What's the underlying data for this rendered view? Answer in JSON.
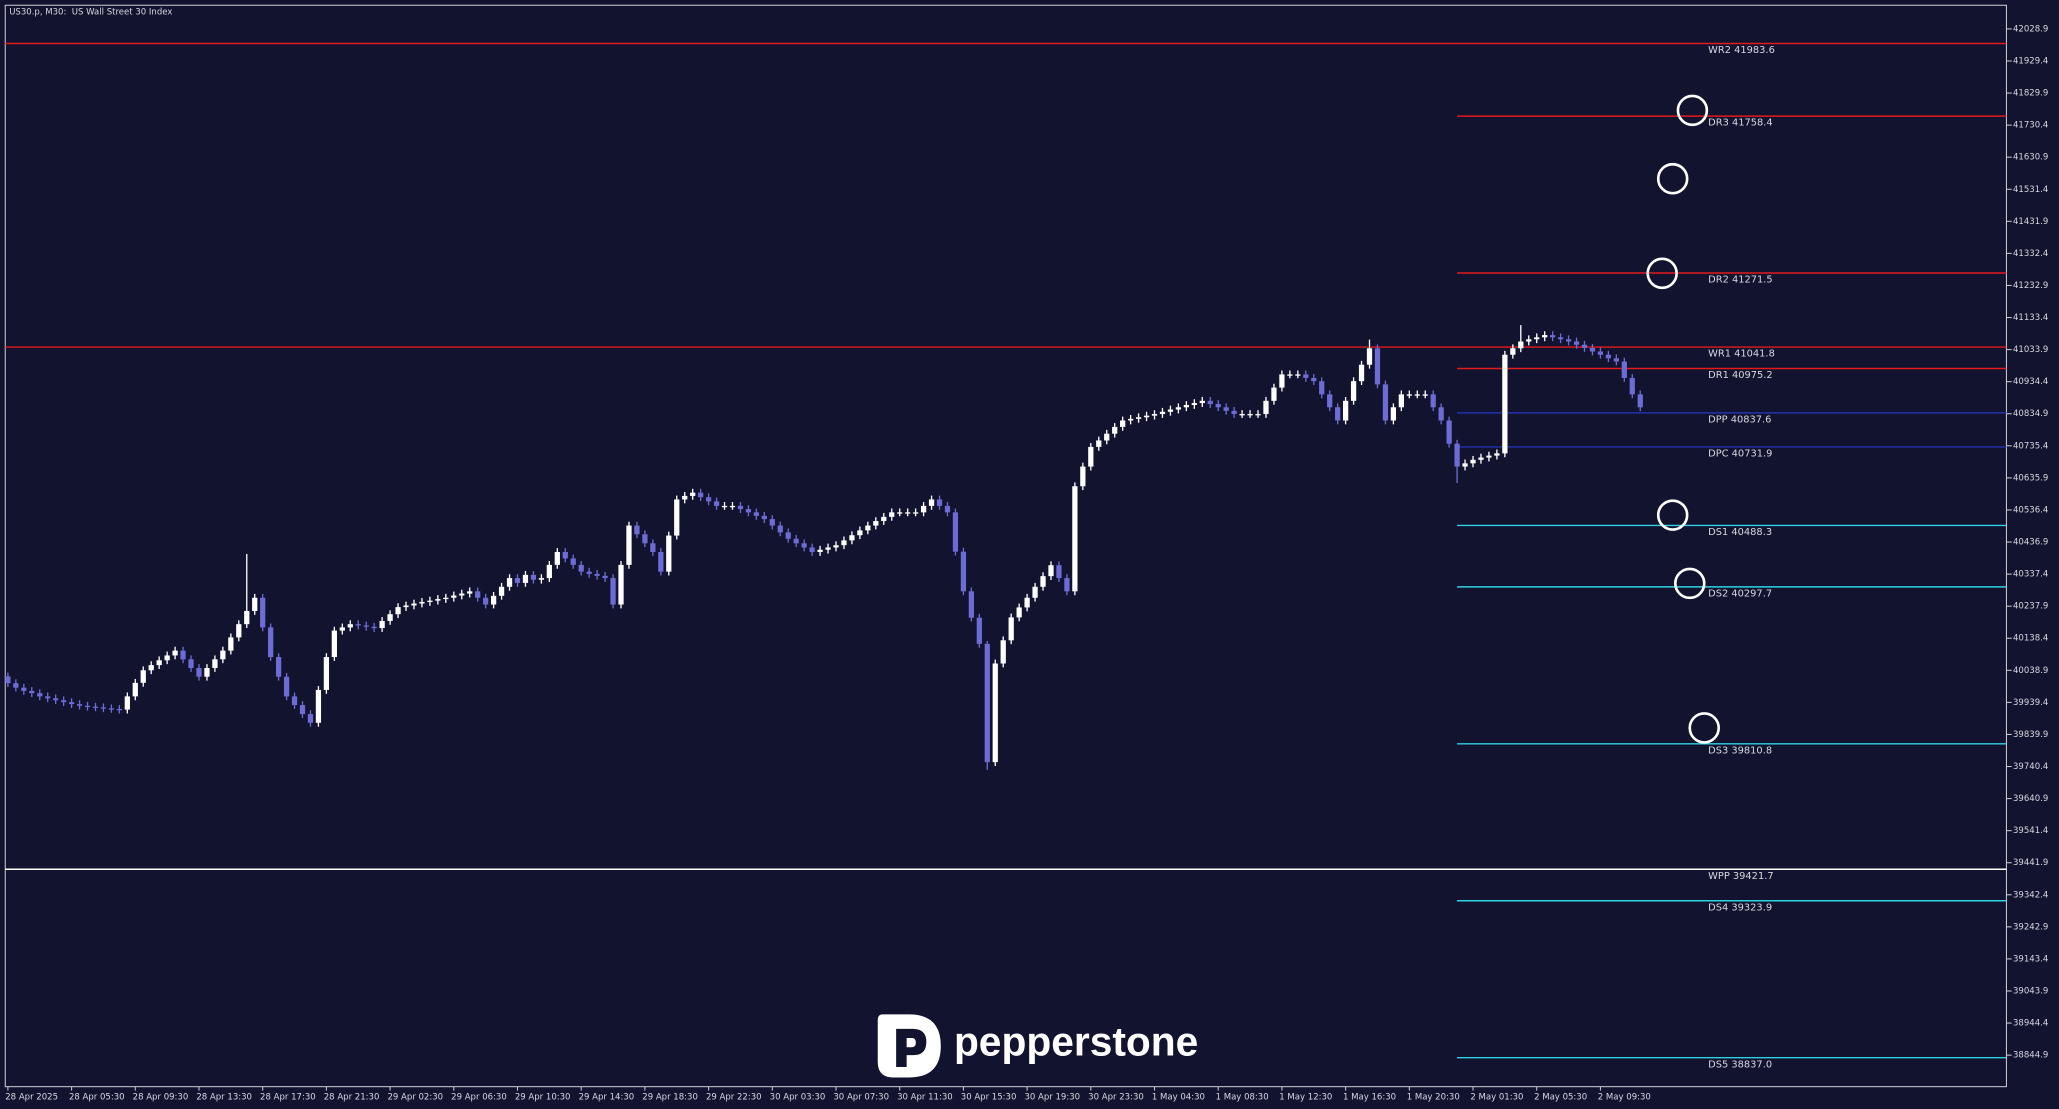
{
  "chart_data": {
    "type": "candlestick",
    "title": "US30.p, M30:  US Wall Street 30 Index",
    "brand": "pepperstone",
    "background": "#12132f",
    "colors": {
      "up": "#ffffff",
      "down": "#6c6cd4"
    },
    "categories": [
      "28 Apr 2025",
      null,
      null,
      null,
      null,
      null,
      null,
      null,
      "28 Apr 05:30",
      null,
      null,
      null,
      null,
      null,
      null,
      null,
      "28 Apr 09:30",
      null,
      null,
      null,
      null,
      null,
      null,
      null,
      "28 Apr 13:30",
      null,
      null,
      null,
      null,
      null,
      null,
      null,
      "28 Apr 17:30",
      null,
      null,
      null,
      null,
      null,
      null,
      null,
      "28 Apr 21:30",
      null,
      null,
      null,
      null,
      null,
      null,
      null,
      "29 Apr 02:30",
      null,
      null,
      null,
      null,
      null,
      null,
      null,
      "29 Apr 06:30",
      null,
      null,
      null,
      null,
      null,
      null,
      null,
      "29 Apr 10:30",
      null,
      null,
      null,
      null,
      null,
      null,
      null,
      "29 Apr 14:30",
      null,
      null,
      null,
      null,
      null,
      null,
      null,
      "29 Apr 18:30",
      null,
      null,
      null,
      null,
      null,
      null,
      null,
      "29 Apr 22:30",
      null,
      null,
      null,
      null,
      null,
      null,
      null,
      "30 Apr 03:30",
      null,
      null,
      null,
      null,
      null,
      null,
      null,
      "30 Apr 07:30",
      null,
      null,
      null,
      null,
      null,
      null,
      null,
      "30 Apr 11:30",
      null,
      null,
      null,
      null,
      null,
      null,
      null,
      "30 Apr 15:30",
      null,
      null,
      null,
      null,
      null,
      null,
      null,
      "30 Apr 19:30",
      null,
      null,
      null,
      null,
      null,
      null,
      null,
      "30 Apr 23:30",
      null,
      null,
      null,
      null,
      null,
      null,
      null,
      "1 May 04:30",
      null,
      null,
      null,
      null,
      null,
      null,
      null,
      "1 May 08:30",
      null,
      null,
      null,
      null,
      null,
      null,
      null,
      "1 May 12:30",
      null,
      null,
      null,
      null,
      null,
      null,
      null,
      "1 May 16:30",
      null,
      null,
      null,
      null,
      null,
      null,
      null,
      "1 May 20:30",
      null,
      null,
      null,
      null,
      null,
      null,
      null,
      "2 May 01:30",
      null,
      null,
      null,
      null,
      null,
      null,
      null,
      "2 May 05:30",
      null,
      null,
      null,
      null,
      null,
      null,
      null,
      "2 May 09:30",
      null,
      null,
      null,
      null,
      null
    ],
    "open": [
      40020,
      39999,
      39985,
      39975,
      39968,
      39958,
      39952,
      39946,
      39940,
      39934,
      39929,
      39926,
      39924,
      39921,
      39919,
      39917,
      39958,
      40000,
      40039,
      40055,
      40070,
      40085,
      40100,
      40073,
      40046,
      40019,
      40046,
      40073,
      40100,
      40141,
      40182,
      40223,
      40264,
      40172,
      40080,
      40019,
      39958,
      39931,
      39903,
      39876,
      39978,
      40080,
      40162,
      40172,
      40182,
      40178,
      40174,
      40170,
      40192,
      40213,
      40235,
      40240,
      40246,
      40251,
      40255,
      40260,
      40264,
      40271,
      40277,
      40284,
      40264,
      40243,
      40270,
      40298,
      40325,
      40310,
      40335,
      40320,
      40325,
      40366,
      40406,
      40386,
      40366,
      40345,
      40338,
      40332,
      40325,
      40243,
      40366,
      40488,
      40461,
      40433,
      40406,
      40345,
      40457,
      40569,
      40580,
      40590,
      40576,
      40563,
      40549,
      40549,
      40549,
      40539,
      40529,
      40518,
      40508,
      40488,
      40467,
      40447,
      40433,
      40420,
      40406,
      40413,
      40420,
      40427,
      40442,
      40458,
      40473,
      40488,
      40502,
      40515,
      40529,
      40529,
      40529,
      40529,
      40549,
      40569,
      40549,
      40529,
      40407,
      40284,
      40202,
      40121,
      39754,
      40060,
      40132,
      40203,
      40234,
      40264,
      40298,
      40331,
      40365,
      40325,
      40284,
      40610,
      40671,
      40732,
      40752,
      40773,
      40794,
      40814,
      40819,
      40824,
      40829,
      40834,
      40841,
      40848,
      40855,
      40862,
      40868,
      40875,
      40865,
      40855,
      40844,
      40834,
      40834,
      40834,
      40834,
      40875,
      40916,
      40957,
      40957,
      40957,
      40946,
      40936,
      40895,
      40855,
      40814,
      40875,
      40936,
      40987,
      41038,
      40926,
      40814,
      40855,
      40895,
      40895,
      40895,
      40895,
      40855,
      40814,
      40742,
      40671,
      40681,
      40692,
      40699,
      40705,
      40712,
      41018,
      41038,
      41059,
      41066,
      41072,
      41079,
      41072,
      41066,
      41059,
      41049,
      41039,
      41028,
      41018,
      41007,
      40997,
      40946,
      40895
    ],
    "high": [
      40032,
      40011,
      39997,
      39987,
      39980,
      39970,
      39964,
      39958,
      39952,
      39946,
      39941,
      39938,
      39936,
      39933,
      39931,
      39970,
      40012,
      40051,
      40067,
      40082,
      40097,
      40112,
      40112,
      40085,
      40058,
      40058,
      40085,
      40112,
      40153,
      40194,
      40400,
      40276,
      40276,
      40184,
      40092,
      40031,
      39970,
      39943,
      39915,
      39990,
      40092,
      40174,
      40184,
      40194,
      40194,
      40190,
      40186,
      40204,
      40225,
      40247,
      40252,
      40258,
      40263,
      40267,
      40272,
      40276,
      40283,
      40289,
      40296,
      40296,
      40276,
      40282,
      40310,
      40337,
      40337,
      40347,
      40347,
      40337,
      40378,
      40418,
      40418,
      40398,
      40378,
      40357,
      40350,
      40344,
      40337,
      40378,
      40500,
      40500,
      40473,
      40445,
      40418,
      40469,
      40581,
      40592,
      40602,
      40602,
      40588,
      40575,
      40561,
      40561,
      40561,
      40551,
      40541,
      40530,
      40520,
      40500,
      40479,
      40459,
      40445,
      40432,
      40425,
      40432,
      40439,
      40454,
      40470,
      40485,
      40500,
      40514,
      40527,
      40541,
      40541,
      40541,
      40541,
      40561,
      40581,
      40581,
      40561,
      40541,
      40419,
      40296,
      40214,
      40130,
      40072,
      40144,
      40215,
      40246,
      40276,
      40310,
      40343,
      40377,
      40377,
      40337,
      40622,
      40683,
      40744,
      40764,
      40785,
      40806,
      40826,
      40831,
      40836,
      40841,
      40846,
      40853,
      40860,
      40867,
      40874,
      40880,
      40887,
      40887,
      40877,
      40867,
      40856,
      40846,
      40846,
      40846,
      40887,
      40928,
      40969,
      40969,
      40969,
      40969,
      40958,
      40948,
      40907,
      40867,
      40887,
      40948,
      40999,
      41065,
      41050,
      40938,
      40867,
      40907,
      40907,
      40907,
      40907,
      40907,
      40867,
      40826,
      40754,
      40693,
      40704,
      40711,
      40717,
      40724,
      41030,
      41050,
      41110,
      41078,
      41084,
      41091,
      41091,
      41084,
      41078,
      41071,
      41061,
      41051,
      41040,
      41030,
      41019,
      41009,
      40958,
      40907
    ],
    "low": [
      39987,
      39973,
      39963,
      39956,
      39946,
      39940,
      39934,
      39928,
      39922,
      39917,
      39914,
      39912,
      39909,
      39907,
      39905,
      39905,
      39946,
      39988,
      40027,
      40043,
      40058,
      40073,
      40061,
      40034,
      40007,
      40007,
      40034,
      40061,
      40088,
      40129,
      40170,
      40211,
      40160,
      40068,
      40007,
      39946,
      39919,
      39891,
      39864,
      39864,
      39966,
      40068,
      40150,
      40160,
      40166,
      40162,
      40158,
      40158,
      40180,
      40201,
      40223,
      40228,
      40234,
      40239,
      40243,
      40248,
      40252,
      40259,
      40265,
      40252,
      40231,
      40231,
      40258,
      40286,
      40298,
      40298,
      40308,
      40308,
      40313,
      40354,
      40374,
      40354,
      40333,
      40326,
      40320,
      40313,
      40231,
      40231,
      40354,
      40449,
      40421,
      40394,
      40333,
      40333,
      40445,
      40557,
      40568,
      40564,
      40551,
      40537,
      40537,
      40537,
      40527,
      40517,
      40506,
      40496,
      40476,
      40455,
      40435,
      40421,
      40408,
      40394,
      40394,
      40401,
      40408,
      40415,
      40430,
      40446,
      40461,
      40476,
      40490,
      40503,
      40517,
      40517,
      40517,
      40517,
      40537,
      40537,
      40517,
      40395,
      40272,
      40190,
      40109,
      39730,
      39742,
      40048,
      40120,
      40191,
      40222,
      40252,
      40286,
      40319,
      40313,
      40272,
      40272,
      40598,
      40659,
      40720,
      40740,
      40761,
      40782,
      40802,
      40807,
      40812,
      40817,
      40822,
      40829,
      40836,
      40843,
      40850,
      40856,
      40853,
      40843,
      40832,
      40822,
      40822,
      40822,
      40822,
      40822,
      40863,
      40904,
      40945,
      40945,
      40934,
      40924,
      40883,
      40843,
      40802,
      40802,
      40863,
      40924,
      40975,
      40914,
      40802,
      40802,
      40843,
      40883,
      40883,
      40883,
      40843,
      40802,
      40730,
      40620,
      40659,
      40669,
      40680,
      40687,
      40693,
      40700,
      41006,
      41026,
      41047,
      41054,
      41060,
      41060,
      41054,
      41047,
      41037,
      41027,
      41016,
      41006,
      40995,
      40985,
      40934,
      40883,
      40843
    ],
    "close": [
      39999,
      39985,
      39975,
      39968,
      39958,
      39952,
      39946,
      39940,
      39934,
      39929,
      39926,
      39924,
      39921,
      39919,
      39917,
      39958,
      40000,
      40039,
      40055,
      40070,
      40085,
      40100,
      40073,
      40046,
      40019,
      40046,
      40073,
      40100,
      40141,
      40182,
      40223,
      40264,
      40172,
      40080,
      40019,
      39958,
      39931,
      39903,
      39876,
      39978,
      40080,
      40162,
      40172,
      40182,
      40178,
      40174,
      40170,
      40192,
      40213,
      40235,
      40240,
      40246,
      40251,
      40255,
      40260,
      40264,
      40271,
      40277,
      40284,
      40264,
      40243,
      40270,
      40298,
      40325,
      40310,
      40335,
      40320,
      40325,
      40366,
      40406,
      40386,
      40366,
      40345,
      40338,
      40332,
      40325,
      40243,
      40366,
      40488,
      40461,
      40433,
      40406,
      40345,
      40457,
      40569,
      40580,
      40590,
      40576,
      40563,
      40549,
      40549,
      40549,
      40539,
      40529,
      40518,
      40508,
      40488,
      40467,
      40447,
      40433,
      40420,
      40406,
      40413,
      40420,
      40427,
      40442,
      40458,
      40473,
      40488,
      40502,
      40515,
      40529,
      40529,
      40529,
      40529,
      40549,
      40569,
      40549,
      40529,
      40407,
      40284,
      40202,
      40121,
      39754,
      40060,
      40132,
      40203,
      40234,
      40264,
      40298,
      40331,
      40365,
      40325,
      40284,
      40610,
      40671,
      40732,
      40752,
      40773,
      40794,
      40814,
      40819,
      40824,
      40829,
      40834,
      40841,
      40848,
      40855,
      40862,
      40868,
      40875,
      40865,
      40855,
      40844,
      40834,
      40834,
      40834,
      40834,
      40875,
      40916,
      40957,
      40957,
      40957,
      40946,
      40936,
      40895,
      40855,
      40814,
      40875,
      40936,
      40987,
      41038,
      40926,
      40814,
      40855,
      40895,
      40895,
      40895,
      40895,
      40855,
      40814,
      40742,
      40671,
      40681,
      40692,
      40699,
      40705,
      40712,
      41018,
      41038,
      41059,
      41066,
      41072,
      41079,
      41072,
      41066,
      41059,
      41049,
      41039,
      41028,
      41018,
      41007,
      40997,
      40946,
      40895,
      40855
    ],
    "ylim": [
      38747.1,
      42102.3
    ],
    "yticks": [
      42028.9,
      41929.4,
      41829.9,
      41730.4,
      41630.9,
      41531.4,
      41431.9,
      41332.4,
      41232.9,
      41133.4,
      41033.9,
      40934.4,
      40834.9,
      40735.4,
      40635.9,
      40536.4,
      40436.9,
      40337.4,
      40237.9,
      40138.4,
      40038.9,
      39939.4,
      39839.9,
      39740.4,
      39640.9,
      39541.4,
      39441.9,
      39342.4,
      39242.9,
      39143.4,
      39043.9,
      38944.4,
      38844.9
    ],
    "levels": [
      {
        "label": "WR2 41983.6",
        "value": 41983.6,
        "kind": "weekly",
        "color": "#e31b1b"
      },
      {
        "label": "DR3 41758.4",
        "value": 41758.4,
        "kind": "daily",
        "color": "#e31b1b"
      },
      {
        "label": "DR2 41271.5",
        "value": 41271.5,
        "kind": "daily",
        "color": "#e31b1b"
      },
      {
        "label": "WR1 41041.8",
        "value": 41041.8,
        "kind": "weekly",
        "color": "#e31b1b"
      },
      {
        "label": "DR1 40975.2",
        "value": 40975.2,
        "kind": "daily",
        "color": "#e31b1b"
      },
      {
        "label": "DPP 40837.6",
        "value": 40837.6,
        "kind": "daily",
        "color": "#2233b0"
      },
      {
        "label": "DPC 40731.9",
        "value": 40731.9,
        "kind": "daily",
        "color": "#2233b0"
      },
      {
        "label": "DS1 40488.3",
        "value": 40488.3,
        "kind": "daily",
        "color": "#2fd3e3"
      },
      {
        "label": "DS2 40297.7",
        "value": 40297.7,
        "kind": "daily",
        "color": "#2fd3e3"
      },
      {
        "label": "DS3 39810.8",
        "value": 39810.8,
        "kind": "daily",
        "color": "#2fd3e3"
      },
      {
        "label": "WPP 39421.7",
        "value": 39421.7,
        "kind": "weekly",
        "color": "#ffffff"
      },
      {
        "label": "DS4 39323.9",
        "value": 39323.9,
        "kind": "daily",
        "color": "#2fd3e3"
      },
      {
        "label": "DS5 38837.0",
        "value": 38837.0,
        "kind": "daily",
        "color": "#2fd3e3"
      }
    ]
  }
}
